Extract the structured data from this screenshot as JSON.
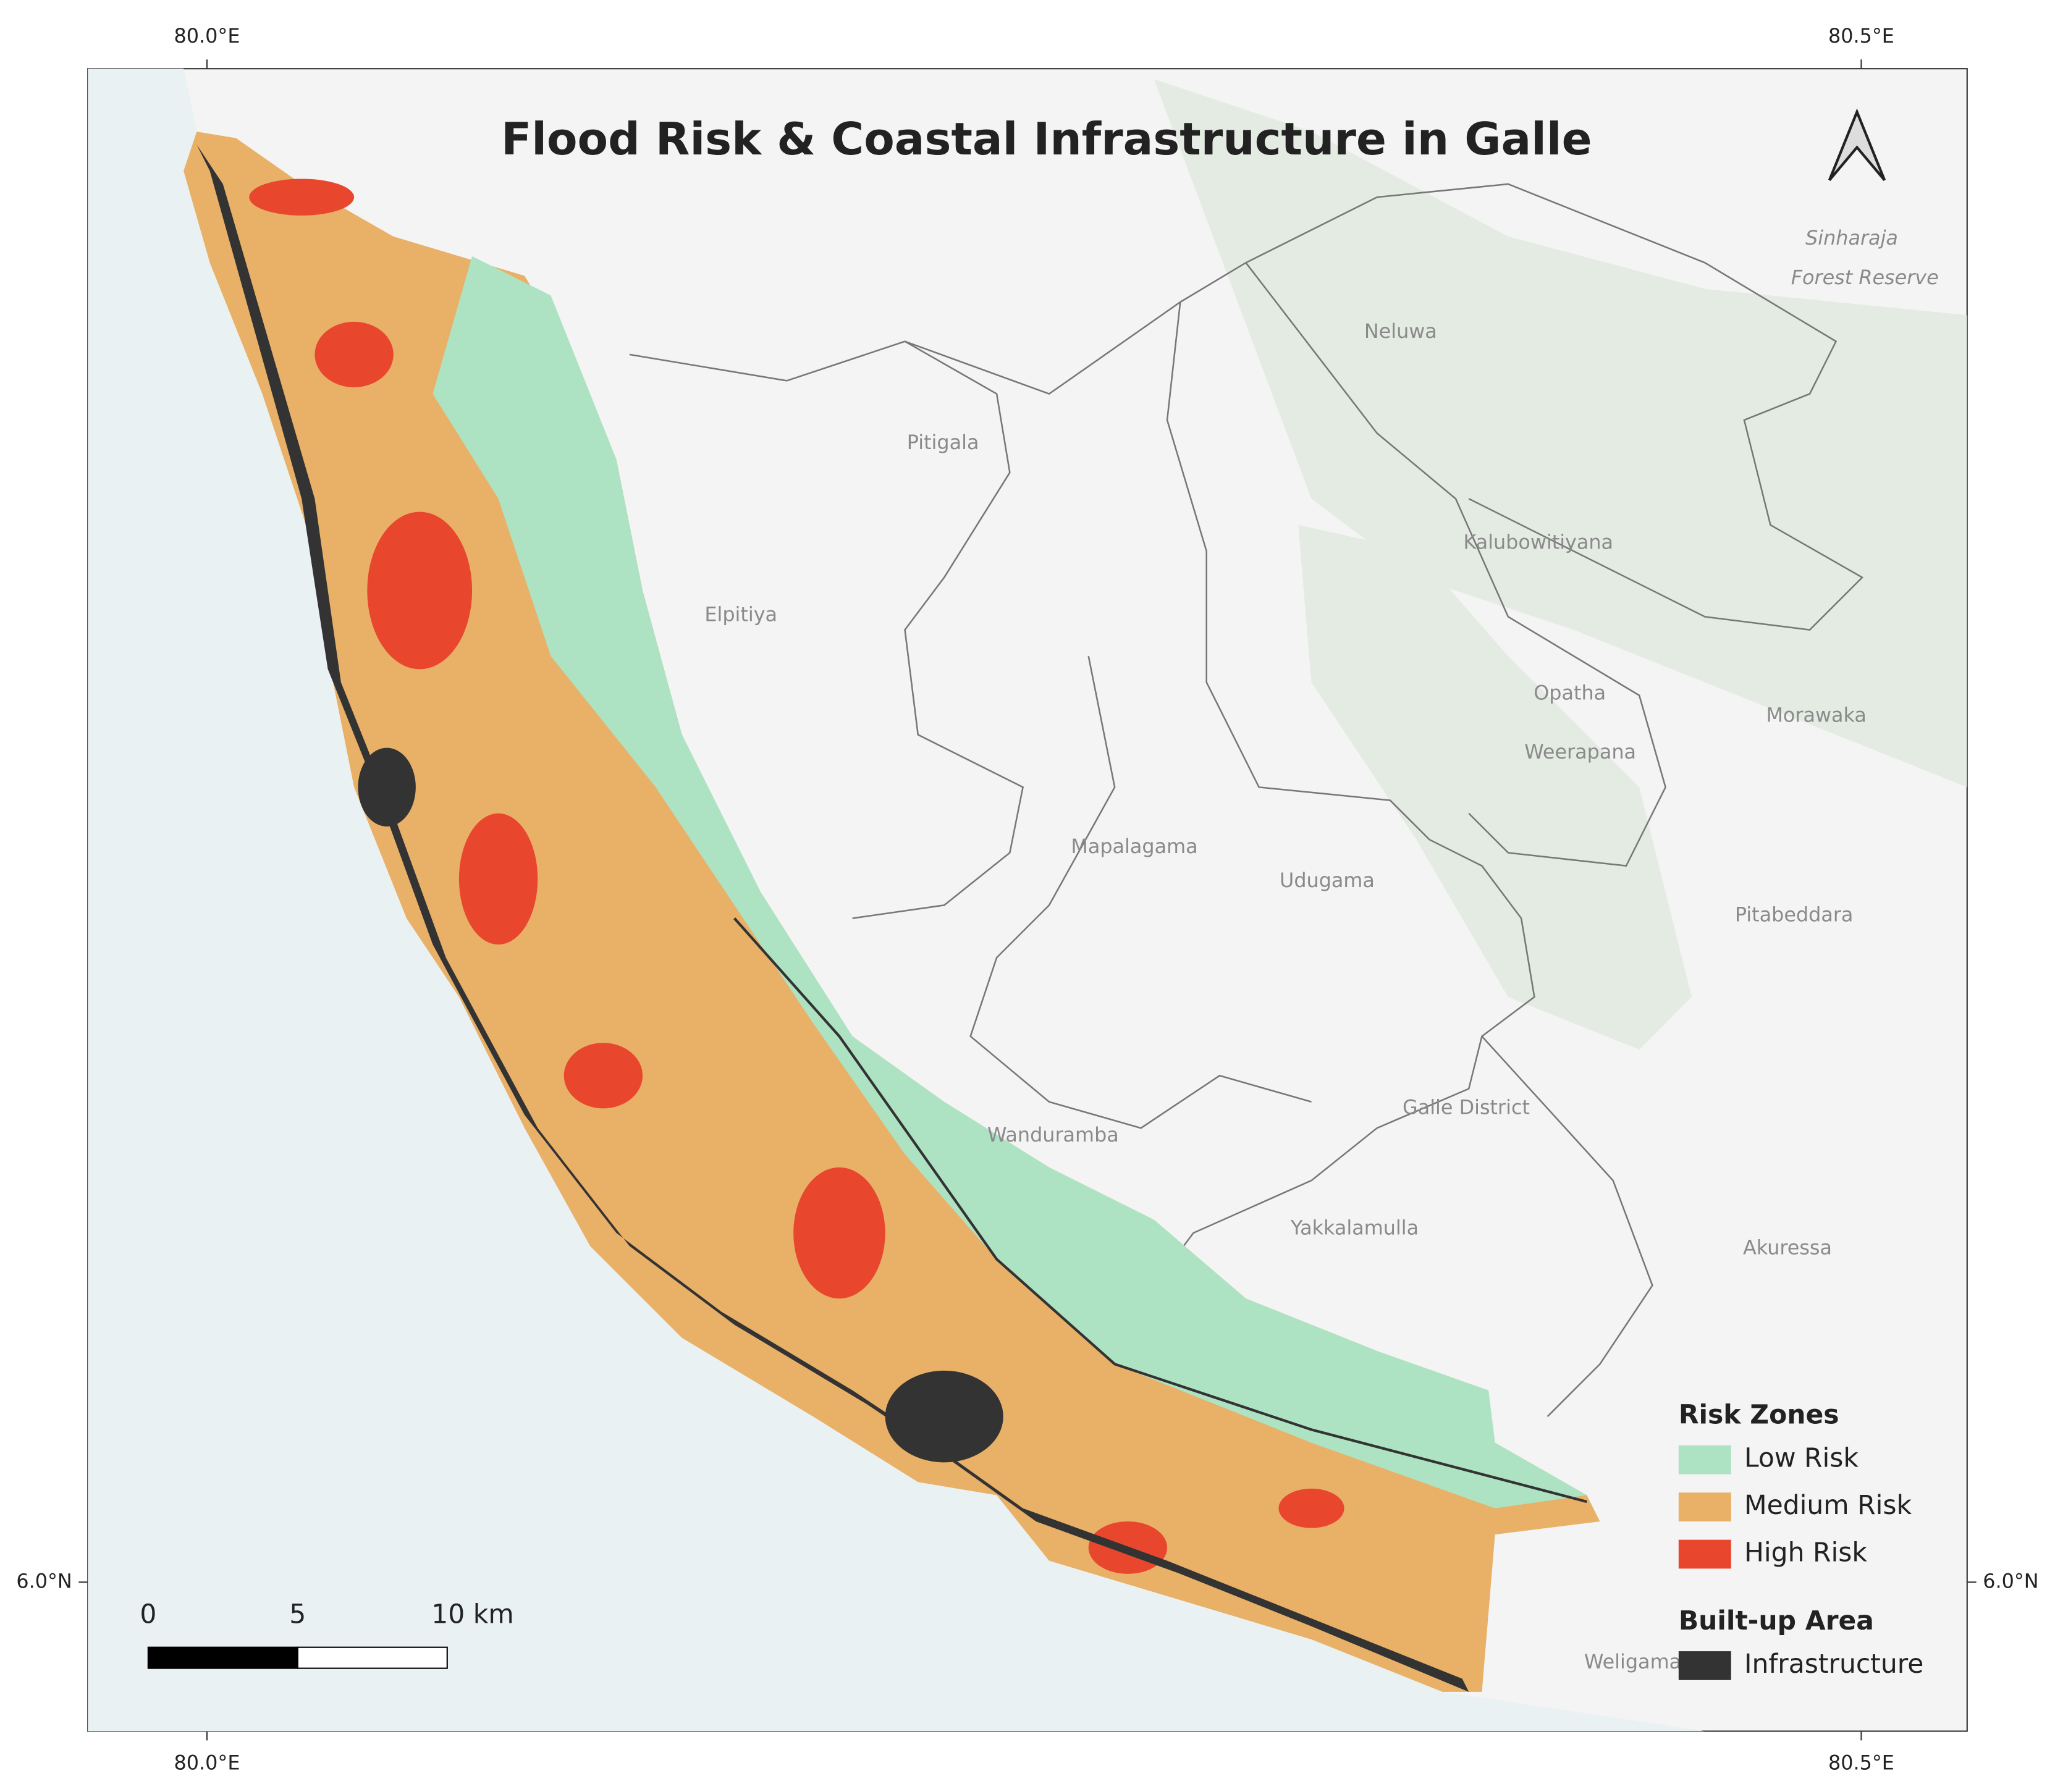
{
  "title": "Flood Risk & Coastal Infrastructure in Galle",
  "map": {
    "xlim": [
      79.964,
      80.532
    ],
    "ylim": [
      5.955,
      6.457
    ],
    "xticks": [
      {
        "value": 80.0,
        "label": "80.0°E"
      },
      {
        "value": 80.5,
        "label": "80.5°E"
      }
    ],
    "yticks": [
      {
        "value": 6.0,
        "label": "6.0°N"
      }
    ]
  },
  "places": [
    "Neluwa",
    "Pitigala",
    "Kalubowitiyana",
    "Elpitiya",
    "Opatha",
    "Morawaka",
    "Weerapana",
    "Mapalagama",
    "Udugama",
    "Pitabeddara",
    "Wanduramba",
    "Yakkalamulla",
    "Akuressa",
    "Sinharaja",
    "Forest Reserve",
    "Galle District",
    "Weligama"
  ],
  "legend": {
    "sections": [
      {
        "title": "Risk Zones",
        "items": [
          {
            "label": "Low Risk",
            "color": "#ade3c2"
          },
          {
            "label": "Medium Risk",
            "color": "#e9b067"
          },
          {
            "label": "High Risk",
            "color": "#e8472d"
          }
        ]
      },
      {
        "title": "Built-up Area",
        "items": [
          {
            "label": "Infrastructure",
            "color": "#333333"
          }
        ]
      }
    ]
  },
  "scale_bar": {
    "ticks": [
      0,
      5,
      {
        "value": 10,
        "label": "10 km"
      }
    ]
  }
}
